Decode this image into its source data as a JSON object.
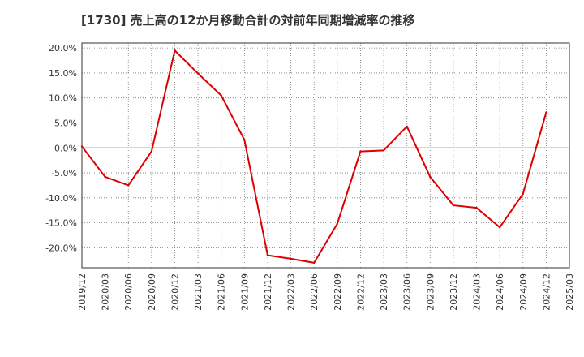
{
  "chart_data": {
    "type": "line",
    "title": "[1730]  売上高の12か月移動合計の対前年同期増減率の推移",
    "xlabel": "",
    "ylabel": "",
    "ylim": [
      -24.0,
      21.0
    ],
    "y_ticks": [
      20.0,
      15.0,
      10.0,
      5.0,
      0.0,
      -5.0,
      -10.0,
      -15.0,
      -20.0
    ],
    "y_tick_labels": [
      "20.0%",
      "15.0%",
      "10.0%",
      "5.0%",
      "0.0%",
      "-5.0%",
      "-10.0%",
      "-15.0%",
      "-20.0%"
    ],
    "x_tick_labels": [
      "2019/12",
      "2020/03",
      "2020/06",
      "2020/09",
      "2020/12",
      "2021/03",
      "2021/06",
      "2021/09",
      "2021/12",
      "2022/03",
      "2022/06",
      "2022/09",
      "2022/12",
      "2023/03",
      "2023/06",
      "2023/09",
      "2023/12",
      "2024/03",
      "2024/06",
      "2024/09",
      "2024/12",
      "2025/03"
    ],
    "grid": true,
    "series": [
      {
        "name": "対前年同期増減率",
        "color": "#dd0000",
        "x": [
          "2019/12",
          "2020/03",
          "2020/06",
          "2020/09",
          "2020/12",
          "2021/03",
          "2021/06",
          "2021/09",
          "2021/12",
          "2022/03",
          "2022/06",
          "2022/09",
          "2022/12",
          "2023/03",
          "2023/06",
          "2023/09",
          "2023/12",
          "2024/03",
          "2024/06",
          "2024/09",
          "2024/12"
        ],
        "values": [
          0.3,
          -5.8,
          -7.5,
          -0.7,
          19.5,
          14.9,
          10.5,
          1.6,
          -21.5,
          -22.2,
          -23.0,
          -15.2,
          -0.7,
          -0.5,
          4.3,
          -5.8,
          -11.5,
          -12.0,
          -15.9,
          -9.2,
          7.1
        ]
      }
    ]
  }
}
